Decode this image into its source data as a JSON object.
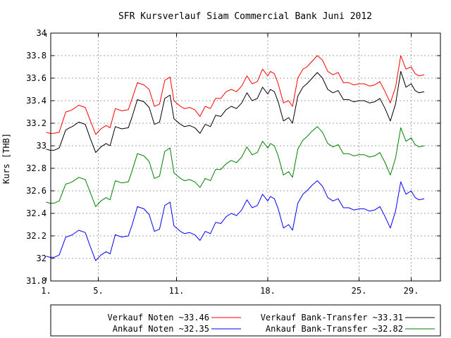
{
  "chart_data": {
    "type": "line",
    "title": "SFR Kursverlauf Siam Commercial Bank Juni 2012",
    "ylabel": "Kurs [THB]",
    "xlabel": "",
    "ylim": [
      31.8,
      34.0
    ],
    "xlim": [
      1,
      30
    ],
    "grid": true,
    "legend_placement": "bottom",
    "yticks": [
      31.8,
      32,
      32.2,
      32.4,
      32.6,
      32.8,
      33,
      33.2,
      33.4,
      33.6,
      33.8,
      34
    ],
    "ytick_labels": [
      "31.8",
      "32",
      "32.2",
      "32.4",
      "32.6",
      "32.8",
      "33",
      "33.2",
      "33.4",
      "33.6",
      "33.8",
      "34"
    ],
    "xticks": [
      1,
      5,
      11,
      18,
      25,
      29
    ],
    "xtick_labels": [
      "1.",
      "5.",
      "11.",
      "18.",
      "25.",
      "29."
    ],
    "series": [
      {
        "name": "Verkauf Noten ~33.46",
        "color": "#ff0000",
        "x": [
          1,
          1.3,
          1.6,
          2,
          2.5,
          2.8,
          3,
          3.5,
          4,
          4.4,
          4.8,
          5.2,
          5.6,
          5.9,
          6.3,
          6.8,
          7.3,
          7.6,
          8,
          8.5,
          8.9,
          9.3,
          9.7,
          10.1,
          10.5,
          10.8,
          11,
          11.3,
          11.6,
          12,
          12.4,
          12.8,
          13.2,
          13.6,
          14,
          14.4,
          14.8,
          15.2,
          15.6,
          16,
          16.4,
          16.8,
          17.2,
          17.6,
          18,
          18.2,
          18.5,
          18.8,
          19.2,
          19.6,
          19.9,
          20.3,
          20.7,
          21,
          21.4,
          21.8,
          22.2,
          22.6,
          23,
          23.4,
          23.8,
          24.2,
          24.6,
          25,
          25.4,
          25.8,
          26.2,
          26.6,
          27,
          27.4,
          27.8,
          28.2,
          28.6,
          29,
          29.3,
          29.6,
          30
        ],
        "values": [
          33.12,
          33.11,
          33.11,
          33.12,
          33.3,
          33.31,
          33.32,
          33.36,
          33.34,
          33.22,
          33.1,
          33.15,
          33.18,
          33.16,
          33.33,
          33.31,
          33.32,
          33.42,
          33.56,
          33.54,
          33.5,
          33.35,
          33.37,
          33.58,
          33.61,
          33.4,
          33.38,
          33.35,
          33.33,
          33.34,
          33.32,
          33.26,
          33.35,
          33.33,
          33.42,
          33.42,
          33.48,
          33.5,
          33.48,
          33.53,
          33.62,
          33.55,
          33.57,
          33.68,
          33.62,
          33.66,
          33.64,
          33.55,
          33.38,
          33.4,
          33.35,
          33.6,
          33.68,
          33.7,
          33.75,
          33.8,
          33.76,
          33.66,
          33.63,
          33.65,
          33.56,
          33.56,
          33.54,
          33.55,
          33.55,
          33.53,
          33.54,
          33.57,
          33.48,
          33.38,
          33.52,
          33.8,
          33.68,
          33.7,
          33.64,
          33.62,
          33.63
        ]
      },
      {
        "name": "Verkauf Bank-Transfer ~33.31",
        "color": "#000000",
        "x": [
          1,
          1.3,
          1.6,
          2,
          2.5,
          2.8,
          3,
          3.5,
          4,
          4.4,
          4.8,
          5.2,
          5.6,
          5.9,
          6.3,
          6.8,
          7.3,
          7.6,
          8,
          8.5,
          8.9,
          9.3,
          9.7,
          10.1,
          10.5,
          10.8,
          11,
          11.3,
          11.6,
          12,
          12.4,
          12.8,
          13.2,
          13.6,
          14,
          14.4,
          14.8,
          15.2,
          15.6,
          16,
          16.4,
          16.8,
          17.2,
          17.6,
          18,
          18.2,
          18.5,
          18.8,
          19.2,
          19.6,
          19.9,
          20.3,
          20.7,
          21,
          21.4,
          21.8,
          22.2,
          22.6,
          23,
          23.4,
          23.8,
          24.2,
          24.6,
          25,
          25.4,
          25.8,
          26.2,
          26.6,
          27,
          27.4,
          27.8,
          28.2,
          28.6,
          29,
          29.3,
          29.6,
          30
        ],
        "values": [
          32.97,
          32.96,
          32.96,
          32.98,
          33.14,
          33.16,
          33.17,
          33.21,
          33.19,
          33.06,
          32.94,
          32.99,
          33.02,
          33.0,
          33.17,
          33.15,
          33.16,
          33.26,
          33.41,
          33.39,
          33.34,
          33.19,
          33.21,
          33.42,
          33.45,
          33.24,
          33.22,
          33.19,
          33.17,
          33.18,
          33.16,
          33.11,
          33.19,
          33.17,
          33.27,
          33.26,
          33.32,
          33.35,
          33.33,
          33.38,
          33.47,
          33.4,
          33.42,
          33.52,
          33.46,
          33.5,
          33.48,
          33.39,
          33.22,
          33.25,
          33.2,
          33.44,
          33.52,
          33.55,
          33.6,
          33.65,
          33.6,
          33.5,
          33.47,
          33.49,
          33.41,
          33.41,
          33.39,
          33.4,
          33.4,
          33.38,
          33.39,
          33.42,
          33.33,
          33.22,
          33.37,
          33.66,
          33.52,
          33.55,
          33.49,
          33.47,
          33.48
        ]
      },
      {
        "name": "Ankauf Bank-Transfer ~32.82",
        "color": "#008000",
        "x": [
          1,
          1.3,
          1.6,
          2,
          2.5,
          2.8,
          3,
          3.5,
          4,
          4.4,
          4.8,
          5.2,
          5.6,
          5.9,
          6.3,
          6.8,
          7.3,
          7.6,
          8,
          8.5,
          8.9,
          9.3,
          9.7,
          10.1,
          10.5,
          10.8,
          11,
          11.3,
          11.6,
          12,
          12.4,
          12.8,
          13.2,
          13.6,
          14,
          14.4,
          14.8,
          15.2,
          15.6,
          16,
          16.4,
          16.8,
          17.2,
          17.6,
          18,
          18.2,
          18.5,
          18.8,
          19.2,
          19.6,
          19.9,
          20.3,
          20.7,
          21,
          21.4,
          21.8,
          22.2,
          22.6,
          23,
          23.4,
          23.8,
          24.2,
          24.6,
          25,
          25.4,
          25.8,
          26.2,
          26.6,
          27,
          27.4,
          27.8,
          28.2,
          28.6,
          29,
          29.3,
          29.6,
          30
        ],
        "values": [
          32.5,
          32.49,
          32.49,
          32.51,
          32.66,
          32.67,
          32.68,
          32.72,
          32.7,
          32.58,
          32.46,
          32.51,
          32.54,
          32.52,
          32.69,
          32.67,
          32.68,
          32.78,
          32.93,
          32.91,
          32.86,
          32.71,
          32.73,
          32.95,
          32.98,
          32.76,
          32.74,
          32.71,
          32.69,
          32.7,
          32.68,
          32.63,
          32.71,
          32.69,
          32.79,
          32.79,
          32.84,
          32.87,
          32.85,
          32.9,
          32.99,
          32.92,
          32.94,
          33.04,
          32.98,
          33.02,
          33.0,
          32.91,
          32.74,
          32.77,
          32.72,
          32.97,
          33.05,
          33.08,
          33.13,
          33.17,
          33.12,
          33.02,
          32.99,
          33.01,
          32.93,
          32.93,
          32.91,
          32.92,
          32.92,
          32.9,
          32.91,
          32.94,
          32.85,
          32.74,
          32.89,
          33.16,
          33.04,
          33.07,
          33.01,
          32.99,
          33.0
        ]
      },
      {
        "name": "Ankauf Noten ~32.35",
        "color": "#0000ff",
        "x": [
          1,
          1.3,
          1.6,
          2,
          2.5,
          2.8,
          3,
          3.5,
          4,
          4.4,
          4.8,
          5.2,
          5.6,
          5.9,
          6.3,
          6.8,
          7.3,
          7.6,
          8,
          8.5,
          8.9,
          9.3,
          9.7,
          10.1,
          10.5,
          10.8,
          11,
          11.3,
          11.6,
          12,
          12.4,
          12.8,
          13.2,
          13.6,
          14,
          14.4,
          14.8,
          15.2,
          15.6,
          16,
          16.4,
          16.8,
          17.2,
          17.6,
          18,
          18.2,
          18.5,
          18.8,
          19.2,
          19.6,
          19.9,
          20.3,
          20.7,
          21,
          21.4,
          21.8,
          22.2,
          22.6,
          23,
          23.4,
          23.8,
          24.2,
          24.6,
          25,
          25.4,
          25.8,
          26.2,
          26.6,
          27,
          27.4,
          27.8,
          28.2,
          28.6,
          29,
          29.3,
          29.6,
          30
        ],
        "values": [
          32.02,
          32.01,
          32.01,
          32.03,
          32.19,
          32.2,
          32.21,
          32.25,
          32.23,
          32.1,
          31.98,
          32.03,
          32.06,
          32.04,
          32.21,
          32.19,
          32.2,
          32.3,
          32.46,
          32.44,
          32.39,
          32.24,
          32.26,
          32.47,
          32.5,
          32.29,
          32.27,
          32.24,
          32.22,
          32.23,
          32.21,
          32.16,
          32.24,
          32.22,
          32.32,
          32.31,
          32.37,
          32.4,
          32.38,
          32.43,
          32.52,
          32.45,
          32.47,
          32.57,
          32.51,
          32.55,
          32.53,
          32.44,
          32.27,
          32.3,
          32.25,
          32.49,
          32.57,
          32.6,
          32.65,
          32.69,
          32.64,
          32.54,
          32.51,
          32.53,
          32.45,
          32.45,
          32.43,
          32.44,
          32.44,
          32.42,
          32.43,
          32.46,
          32.37,
          32.27,
          32.42,
          32.68,
          32.57,
          32.6,
          32.54,
          32.52,
          32.53
        ]
      }
    ]
  }
}
